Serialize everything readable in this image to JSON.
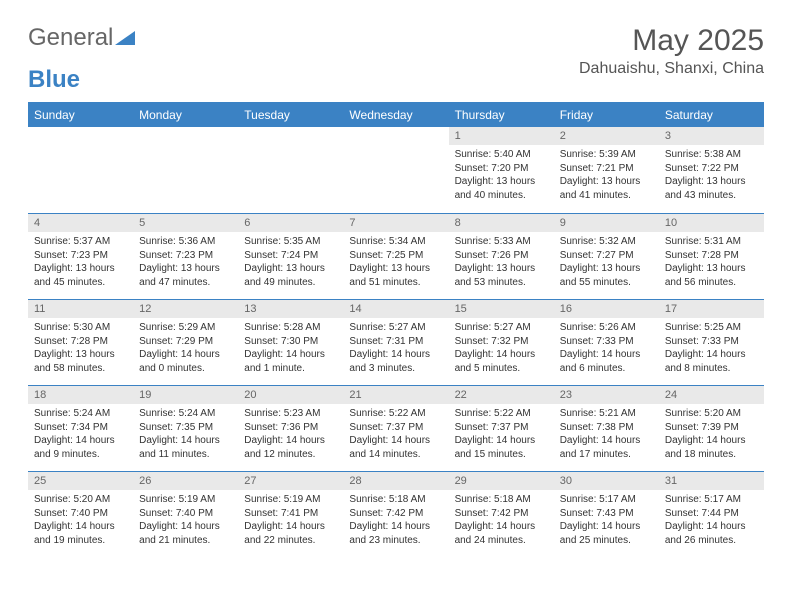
{
  "brand": {
    "part1": "General",
    "part2": "Blue"
  },
  "title": "May 2025",
  "location": "Dahuaishu, Shanxi, China",
  "colors": {
    "accent": "#3b82c4",
    "gray_bg": "#e9e9e9",
    "text": "#333333"
  },
  "dayHeaders": [
    "Sunday",
    "Monday",
    "Tuesday",
    "Wednesday",
    "Thursday",
    "Friday",
    "Saturday"
  ],
  "weeks": [
    [
      {
        "n": "",
        "sr": "",
        "ss": "",
        "dl": ""
      },
      {
        "n": "",
        "sr": "",
        "ss": "",
        "dl": ""
      },
      {
        "n": "",
        "sr": "",
        "ss": "",
        "dl": ""
      },
      {
        "n": "",
        "sr": "",
        "ss": "",
        "dl": ""
      },
      {
        "n": "1",
        "sr": "Sunrise: 5:40 AM",
        "ss": "Sunset: 7:20 PM",
        "dl": "Daylight: 13 hours and 40 minutes."
      },
      {
        "n": "2",
        "sr": "Sunrise: 5:39 AM",
        "ss": "Sunset: 7:21 PM",
        "dl": "Daylight: 13 hours and 41 minutes."
      },
      {
        "n": "3",
        "sr": "Sunrise: 5:38 AM",
        "ss": "Sunset: 7:22 PM",
        "dl": "Daylight: 13 hours and 43 minutes."
      }
    ],
    [
      {
        "n": "4",
        "sr": "Sunrise: 5:37 AM",
        "ss": "Sunset: 7:23 PM",
        "dl": "Daylight: 13 hours and 45 minutes."
      },
      {
        "n": "5",
        "sr": "Sunrise: 5:36 AM",
        "ss": "Sunset: 7:23 PM",
        "dl": "Daylight: 13 hours and 47 minutes."
      },
      {
        "n": "6",
        "sr": "Sunrise: 5:35 AM",
        "ss": "Sunset: 7:24 PM",
        "dl": "Daylight: 13 hours and 49 minutes."
      },
      {
        "n": "7",
        "sr": "Sunrise: 5:34 AM",
        "ss": "Sunset: 7:25 PM",
        "dl": "Daylight: 13 hours and 51 minutes."
      },
      {
        "n": "8",
        "sr": "Sunrise: 5:33 AM",
        "ss": "Sunset: 7:26 PM",
        "dl": "Daylight: 13 hours and 53 minutes."
      },
      {
        "n": "9",
        "sr": "Sunrise: 5:32 AM",
        "ss": "Sunset: 7:27 PM",
        "dl": "Daylight: 13 hours and 55 minutes."
      },
      {
        "n": "10",
        "sr": "Sunrise: 5:31 AM",
        "ss": "Sunset: 7:28 PM",
        "dl": "Daylight: 13 hours and 56 minutes."
      }
    ],
    [
      {
        "n": "11",
        "sr": "Sunrise: 5:30 AM",
        "ss": "Sunset: 7:28 PM",
        "dl": "Daylight: 13 hours and 58 minutes."
      },
      {
        "n": "12",
        "sr": "Sunrise: 5:29 AM",
        "ss": "Sunset: 7:29 PM",
        "dl": "Daylight: 14 hours and 0 minutes."
      },
      {
        "n": "13",
        "sr": "Sunrise: 5:28 AM",
        "ss": "Sunset: 7:30 PM",
        "dl": "Daylight: 14 hours and 1 minute."
      },
      {
        "n": "14",
        "sr": "Sunrise: 5:27 AM",
        "ss": "Sunset: 7:31 PM",
        "dl": "Daylight: 14 hours and 3 minutes."
      },
      {
        "n": "15",
        "sr": "Sunrise: 5:27 AM",
        "ss": "Sunset: 7:32 PM",
        "dl": "Daylight: 14 hours and 5 minutes."
      },
      {
        "n": "16",
        "sr": "Sunrise: 5:26 AM",
        "ss": "Sunset: 7:33 PM",
        "dl": "Daylight: 14 hours and 6 minutes."
      },
      {
        "n": "17",
        "sr": "Sunrise: 5:25 AM",
        "ss": "Sunset: 7:33 PM",
        "dl": "Daylight: 14 hours and 8 minutes."
      }
    ],
    [
      {
        "n": "18",
        "sr": "Sunrise: 5:24 AM",
        "ss": "Sunset: 7:34 PM",
        "dl": "Daylight: 14 hours and 9 minutes."
      },
      {
        "n": "19",
        "sr": "Sunrise: 5:24 AM",
        "ss": "Sunset: 7:35 PM",
        "dl": "Daylight: 14 hours and 11 minutes."
      },
      {
        "n": "20",
        "sr": "Sunrise: 5:23 AM",
        "ss": "Sunset: 7:36 PM",
        "dl": "Daylight: 14 hours and 12 minutes."
      },
      {
        "n": "21",
        "sr": "Sunrise: 5:22 AM",
        "ss": "Sunset: 7:37 PM",
        "dl": "Daylight: 14 hours and 14 minutes."
      },
      {
        "n": "22",
        "sr": "Sunrise: 5:22 AM",
        "ss": "Sunset: 7:37 PM",
        "dl": "Daylight: 14 hours and 15 minutes."
      },
      {
        "n": "23",
        "sr": "Sunrise: 5:21 AM",
        "ss": "Sunset: 7:38 PM",
        "dl": "Daylight: 14 hours and 17 minutes."
      },
      {
        "n": "24",
        "sr": "Sunrise: 5:20 AM",
        "ss": "Sunset: 7:39 PM",
        "dl": "Daylight: 14 hours and 18 minutes."
      }
    ],
    [
      {
        "n": "25",
        "sr": "Sunrise: 5:20 AM",
        "ss": "Sunset: 7:40 PM",
        "dl": "Daylight: 14 hours and 19 minutes."
      },
      {
        "n": "26",
        "sr": "Sunrise: 5:19 AM",
        "ss": "Sunset: 7:40 PM",
        "dl": "Daylight: 14 hours and 21 minutes."
      },
      {
        "n": "27",
        "sr": "Sunrise: 5:19 AM",
        "ss": "Sunset: 7:41 PM",
        "dl": "Daylight: 14 hours and 22 minutes."
      },
      {
        "n": "28",
        "sr": "Sunrise: 5:18 AM",
        "ss": "Sunset: 7:42 PM",
        "dl": "Daylight: 14 hours and 23 minutes."
      },
      {
        "n": "29",
        "sr": "Sunrise: 5:18 AM",
        "ss": "Sunset: 7:42 PM",
        "dl": "Daylight: 14 hours and 24 minutes."
      },
      {
        "n": "30",
        "sr": "Sunrise: 5:17 AM",
        "ss": "Sunset: 7:43 PM",
        "dl": "Daylight: 14 hours and 25 minutes."
      },
      {
        "n": "31",
        "sr": "Sunrise: 5:17 AM",
        "ss": "Sunset: 7:44 PM",
        "dl": "Daylight: 14 hours and 26 minutes."
      }
    ]
  ]
}
